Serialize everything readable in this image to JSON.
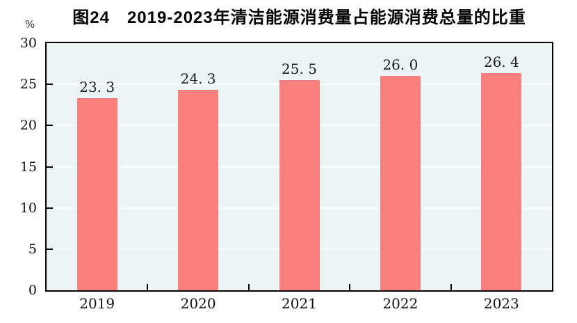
{
  "header": {
    "title": "图24　2019-2023年清洁能源消费量占能源消费总量的比重"
  },
  "colors": {
    "bar": "#fa8080",
    "plot_background": "#ecf4f6",
    "gridline": "#ffffff",
    "axis": "#000000",
    "text": "#1c1c1c"
  },
  "chart_data": {
    "type": "bar",
    "title": "图24　2019-2023年清洁能源消费量占能源消费总量的比重",
    "categories": [
      "2019",
      "2020",
      "2021",
      "2022",
      "2023"
    ],
    "values": [
      23.3,
      24.3,
      25.5,
      26.0,
      26.4
    ],
    "value_labels": [
      "23. 3",
      "24. 3",
      "25. 5",
      "26. 0",
      "26. 4"
    ],
    "xlabel": "",
    "ylabel": "%",
    "ylim": [
      0,
      30
    ],
    "yticks": [
      0,
      5,
      10,
      15,
      20,
      25,
      30
    ],
    "grid": "horizontal white gridlines at y ticks, drawn behind bars",
    "legend": "none",
    "tick_style": "ticks point inward on both axes; x ticks at category boundaries"
  }
}
